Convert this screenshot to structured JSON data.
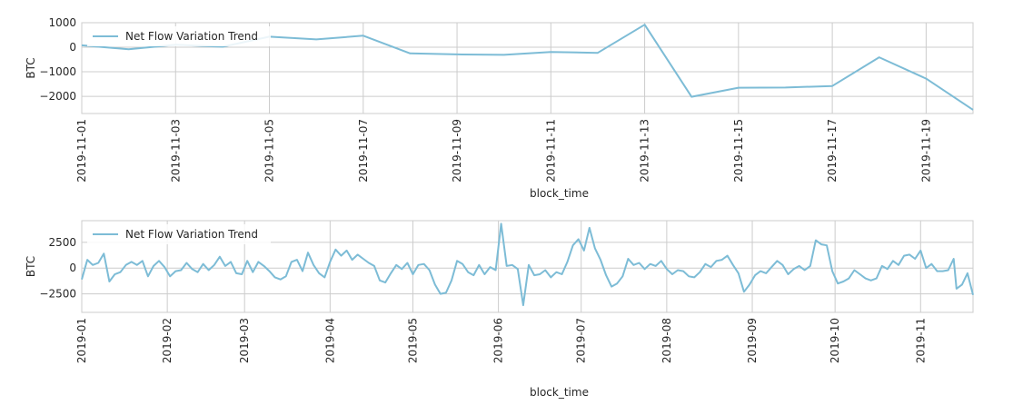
{
  "chart_data": [
    {
      "type": "line",
      "xlabel": "block_time",
      "ylabel": "BTC",
      "legend_position": "upper-left",
      "grid": true,
      "line_color": "#7dbcd6",
      "x_start": "2019-11-01",
      "x_end": "2019-11-20",
      "ylim": [
        -2700,
        1000
      ],
      "yticks": [
        {
          "value": 1000,
          "label": "1000"
        },
        {
          "value": 0,
          "label": "0"
        },
        {
          "value": -1000,
          "label": "−1000"
        },
        {
          "value": -2000,
          "label": "−2000"
        }
      ],
      "xticks": [
        {
          "date": "2019-11-01",
          "label": "2019-11-01"
        },
        {
          "date": "2019-11-03",
          "label": "2019-11-03"
        },
        {
          "date": "2019-11-05",
          "label": "2019-11-05"
        },
        {
          "date": "2019-11-07",
          "label": "2019-11-07"
        },
        {
          "date": "2019-11-09",
          "label": "2019-11-09"
        },
        {
          "date": "2019-11-11",
          "label": "2019-11-11"
        },
        {
          "date": "2019-11-13",
          "label": "2019-11-13"
        },
        {
          "date": "2019-11-15",
          "label": "2019-11-15"
        },
        {
          "date": "2019-11-17",
          "label": "2019-11-17"
        },
        {
          "date": "2019-11-19",
          "label": "2019-11-19"
        }
      ],
      "series": [
        {
          "name": "Net Flow Variation Trend",
          "points": [
            {
              "x": "2019-11-01",
              "y": 80
            },
            {
              "x": "2019-11-02",
              "y": -80
            },
            {
              "x": "2019-11-03",
              "y": 100
            },
            {
              "x": "2019-11-04",
              "y": 20
            },
            {
              "x": "2019-11-05",
              "y": 430
            },
            {
              "x": "2019-11-06",
              "y": 320
            },
            {
              "x": "2019-11-07",
              "y": 470
            },
            {
              "x": "2019-11-08",
              "y": -250
            },
            {
              "x": "2019-11-09",
              "y": -290
            },
            {
              "x": "2019-11-10",
              "y": -310
            },
            {
              "x": "2019-11-11",
              "y": -190
            },
            {
              "x": "2019-11-12",
              "y": -230
            },
            {
              "x": "2019-11-13",
              "y": 920
            },
            {
              "x": "2019-11-14",
              "y": -2020
            },
            {
              "x": "2019-11-15",
              "y": -1650
            },
            {
              "x": "2019-11-16",
              "y": -1640
            },
            {
              "x": "2019-11-17",
              "y": -1580
            },
            {
              "x": "2019-11-18",
              "y": -410
            },
            {
              "x": "2019-11-19",
              "y": -1280
            },
            {
              "x": "2019-11-20",
              "y": -2550
            }
          ]
        }
      ]
    },
    {
      "type": "line",
      "xlabel": "block_time",
      "ylabel": "BTC",
      "legend_position": "upper-left",
      "grid": true,
      "line_color": "#7dbcd6",
      "x_start": "2019-01-01",
      "x_end": "2019-11-20",
      "ylim": [
        -4300,
        4600
      ],
      "yticks": [
        {
          "value": 2500,
          "label": "2500"
        },
        {
          "value": 0,
          "label": "0"
        },
        {
          "value": -2500,
          "label": "−2500"
        }
      ],
      "xticks": [
        {
          "date": "2019-01-01",
          "label": "2019-01"
        },
        {
          "date": "2019-02-01",
          "label": "2019-02"
        },
        {
          "date": "2019-03-01",
          "label": "2019-03"
        },
        {
          "date": "2019-04-01",
          "label": "2019-04"
        },
        {
          "date": "2019-05-01",
          "label": "2019-05"
        },
        {
          "date": "2019-06-01",
          "label": "2019-06"
        },
        {
          "date": "2019-07-01",
          "label": "2019-07"
        },
        {
          "date": "2019-08-01",
          "label": "2019-08"
        },
        {
          "date": "2019-09-01",
          "label": "2019-09"
        },
        {
          "date": "2019-10-01",
          "label": "2019-10"
        },
        {
          "date": "2019-11-01",
          "label": "2019-11"
        }
      ],
      "series": [
        {
          "name": "Net Flow Variation Trend",
          "points": [
            {
              "x": "2019-01-01",
              "y": -1100
            },
            {
              "x": "2019-01-03",
              "y": 800
            },
            {
              "x": "2019-01-05",
              "y": 300
            },
            {
              "x": "2019-01-07",
              "y": 500
            },
            {
              "x": "2019-01-09",
              "y": 1400
            },
            {
              "x": "2019-01-11",
              "y": -1300
            },
            {
              "x": "2019-01-13",
              "y": -600
            },
            {
              "x": "2019-01-15",
              "y": -400
            },
            {
              "x": "2019-01-17",
              "y": 300
            },
            {
              "x": "2019-01-19",
              "y": 600
            },
            {
              "x": "2019-01-21",
              "y": 300
            },
            {
              "x": "2019-01-23",
              "y": 700
            },
            {
              "x": "2019-01-25",
              "y": -800
            },
            {
              "x": "2019-01-27",
              "y": 200
            },
            {
              "x": "2019-01-29",
              "y": 700
            },
            {
              "x": "2019-01-31",
              "y": 100
            },
            {
              "x": "2019-02-02",
              "y": -800
            },
            {
              "x": "2019-02-04",
              "y": -300
            },
            {
              "x": "2019-02-06",
              "y": -200
            },
            {
              "x": "2019-02-08",
              "y": 500
            },
            {
              "x": "2019-02-10",
              "y": -100
            },
            {
              "x": "2019-02-12",
              "y": -400
            },
            {
              "x": "2019-02-14",
              "y": 400
            },
            {
              "x": "2019-02-16",
              "y": -200
            },
            {
              "x": "2019-02-18",
              "y": 300
            },
            {
              "x": "2019-02-20",
              "y": 1100
            },
            {
              "x": "2019-02-22",
              "y": 200
            },
            {
              "x": "2019-02-24",
              "y": 600
            },
            {
              "x": "2019-02-26",
              "y": -500
            },
            {
              "x": "2019-02-28",
              "y": -600
            },
            {
              "x": "2019-03-02",
              "y": 700
            },
            {
              "x": "2019-03-04",
              "y": -400
            },
            {
              "x": "2019-03-06",
              "y": 600
            },
            {
              "x": "2019-03-08",
              "y": 200
            },
            {
              "x": "2019-03-10",
              "y": -300
            },
            {
              "x": "2019-03-12",
              "y": -900
            },
            {
              "x": "2019-03-14",
              "y": -1100
            },
            {
              "x": "2019-03-16",
              "y": -800
            },
            {
              "x": "2019-03-18",
              "y": 600
            },
            {
              "x": "2019-03-20",
              "y": 800
            },
            {
              "x": "2019-03-22",
              "y": -300
            },
            {
              "x": "2019-03-24",
              "y": 1500
            },
            {
              "x": "2019-03-26",
              "y": 300
            },
            {
              "x": "2019-03-28",
              "y": -500
            },
            {
              "x": "2019-03-30",
              "y": -900
            },
            {
              "x": "2019-04-01",
              "y": 600
            },
            {
              "x": "2019-04-03",
              "y": 1800
            },
            {
              "x": "2019-04-05",
              "y": 1200
            },
            {
              "x": "2019-04-07",
              "y": 1700
            },
            {
              "x": "2019-04-09",
              "y": 800
            },
            {
              "x": "2019-04-11",
              "y": 1300
            },
            {
              "x": "2019-04-13",
              "y": 900
            },
            {
              "x": "2019-04-15",
              "y": 500
            },
            {
              "x": "2019-04-17",
              "y": 200
            },
            {
              "x": "2019-04-19",
              "y": -1200
            },
            {
              "x": "2019-04-21",
              "y": -1400
            },
            {
              "x": "2019-04-23",
              "y": -500
            },
            {
              "x": "2019-04-25",
              "y": 300
            },
            {
              "x": "2019-04-27",
              "y": -100
            },
            {
              "x": "2019-04-29",
              "y": 500
            },
            {
              "x": "2019-05-01",
              "y": -600
            },
            {
              "x": "2019-05-03",
              "y": 300
            },
            {
              "x": "2019-05-05",
              "y": 400
            },
            {
              "x": "2019-05-07",
              "y": -200
            },
            {
              "x": "2019-05-09",
              "y": -1600
            },
            {
              "x": "2019-05-11",
              "y": -2500
            },
            {
              "x": "2019-05-13",
              "y": -2400
            },
            {
              "x": "2019-05-15",
              "y": -1200
            },
            {
              "x": "2019-05-17",
              "y": 700
            },
            {
              "x": "2019-05-19",
              "y": 400
            },
            {
              "x": "2019-05-21",
              "y": -400
            },
            {
              "x": "2019-05-23",
              "y": -700
            },
            {
              "x": "2019-05-25",
              "y": 300
            },
            {
              "x": "2019-05-27",
              "y": -600
            },
            {
              "x": "2019-05-29",
              "y": 100
            },
            {
              "x": "2019-05-31",
              "y": -200
            },
            {
              "x": "2019-06-02",
              "y": 4300
            },
            {
              "x": "2019-06-04",
              "y": 200
            },
            {
              "x": "2019-06-06",
              "y": 300
            },
            {
              "x": "2019-06-08",
              "y": -100
            },
            {
              "x": "2019-06-10",
              "y": -3600
            },
            {
              "x": "2019-06-12",
              "y": 300
            },
            {
              "x": "2019-06-14",
              "y": -700
            },
            {
              "x": "2019-06-16",
              "y": -600
            },
            {
              "x": "2019-06-18",
              "y": -200
            },
            {
              "x": "2019-06-20",
              "y": -900
            },
            {
              "x": "2019-06-22",
              "y": -400
            },
            {
              "x": "2019-06-24",
              "y": -600
            },
            {
              "x": "2019-06-26",
              "y": 600
            },
            {
              "x": "2019-06-28",
              "y": 2200
            },
            {
              "x": "2019-06-30",
              "y": 2800
            },
            {
              "x": "2019-07-02",
              "y": 1700
            },
            {
              "x": "2019-07-04",
              "y": 3900
            },
            {
              "x": "2019-07-06",
              "y": 1900
            },
            {
              "x": "2019-07-08",
              "y": 800
            },
            {
              "x": "2019-07-10",
              "y": -700
            },
            {
              "x": "2019-07-12",
              "y": -1800
            },
            {
              "x": "2019-07-14",
              "y": -1500
            },
            {
              "x": "2019-07-16",
              "y": -800
            },
            {
              "x": "2019-07-18",
              "y": 900
            },
            {
              "x": "2019-07-20",
              "y": 300
            },
            {
              "x": "2019-07-22",
              "y": 500
            },
            {
              "x": "2019-07-24",
              "y": -100
            },
            {
              "x": "2019-07-26",
              "y": 400
            },
            {
              "x": "2019-07-28",
              "y": 200
            },
            {
              "x": "2019-07-30",
              "y": 700
            },
            {
              "x": "2019-08-01",
              "y": -100
            },
            {
              "x": "2019-08-03",
              "y": -600
            },
            {
              "x": "2019-08-05",
              "y": -200
            },
            {
              "x": "2019-08-07",
              "y": -300
            },
            {
              "x": "2019-08-09",
              "y": -800
            },
            {
              "x": "2019-08-11",
              "y": -900
            },
            {
              "x": "2019-08-13",
              "y": -400
            },
            {
              "x": "2019-08-15",
              "y": 400
            },
            {
              "x": "2019-08-17",
              "y": 100
            },
            {
              "x": "2019-08-19",
              "y": 700
            },
            {
              "x": "2019-08-21",
              "y": 800
            },
            {
              "x": "2019-08-23",
              "y": 1200
            },
            {
              "x": "2019-08-25",
              "y": 300
            },
            {
              "x": "2019-08-27",
              "y": -500
            },
            {
              "x": "2019-08-29",
              "y": -2300
            },
            {
              "x": "2019-08-31",
              "y": -1600
            },
            {
              "x": "2019-09-02",
              "y": -700
            },
            {
              "x": "2019-09-04",
              "y": -300
            },
            {
              "x": "2019-09-06",
              "y": -500
            },
            {
              "x": "2019-09-08",
              "y": 100
            },
            {
              "x": "2019-09-10",
              "y": 700
            },
            {
              "x": "2019-09-12",
              "y": 300
            },
            {
              "x": "2019-09-14",
              "y": -600
            },
            {
              "x": "2019-09-16",
              "y": -100
            },
            {
              "x": "2019-09-18",
              "y": 200
            },
            {
              "x": "2019-09-20",
              "y": -200
            },
            {
              "x": "2019-09-22",
              "y": 200
            },
            {
              "x": "2019-09-24",
              "y": 2700
            },
            {
              "x": "2019-09-26",
              "y": 2300
            },
            {
              "x": "2019-09-28",
              "y": 2200
            },
            {
              "x": "2019-09-30",
              "y": -300
            },
            {
              "x": "2019-10-02",
              "y": -1500
            },
            {
              "x": "2019-10-04",
              "y": -1300
            },
            {
              "x": "2019-10-06",
              "y": -1000
            },
            {
              "x": "2019-10-08",
              "y": -200
            },
            {
              "x": "2019-10-10",
              "y": -600
            },
            {
              "x": "2019-10-12",
              "y": -1000
            },
            {
              "x": "2019-10-14",
              "y": -1200
            },
            {
              "x": "2019-10-16",
              "y": -1000
            },
            {
              "x": "2019-10-18",
              "y": 200
            },
            {
              "x": "2019-10-20",
              "y": -100
            },
            {
              "x": "2019-10-22",
              "y": 700
            },
            {
              "x": "2019-10-24",
              "y": 300
            },
            {
              "x": "2019-10-26",
              "y": 1200
            },
            {
              "x": "2019-10-28",
              "y": 1300
            },
            {
              "x": "2019-10-30",
              "y": 900
            },
            {
              "x": "2019-11-01",
              "y": 1700
            },
            {
              "x": "2019-11-03",
              "y": 0
            },
            {
              "x": "2019-11-05",
              "y": 400
            },
            {
              "x": "2019-11-07",
              "y": -300
            },
            {
              "x": "2019-11-09",
              "y": -300
            },
            {
              "x": "2019-11-11",
              "y": -200
            },
            {
              "x": "2019-11-13",
              "y": 900
            },
            {
              "x": "2019-11-14",
              "y": -2000
            },
            {
              "x": "2019-11-16",
              "y": -1600
            },
            {
              "x": "2019-11-18",
              "y": -500
            },
            {
              "x": "2019-11-20",
              "y": -2600
            }
          ]
        }
      ]
    }
  ]
}
